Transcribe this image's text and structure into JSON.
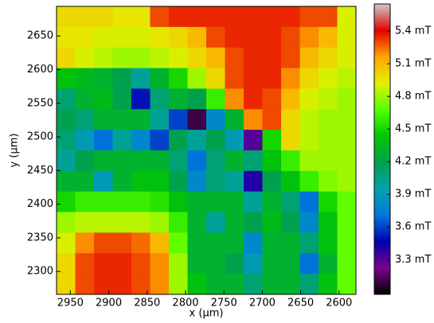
{
  "chart_data": {
    "type": "heatmap",
    "xlabel": "x (μm)",
    "ylabel": "y (μm)",
    "xlim": [
      2968,
      2578
    ],
    "ylim": [
      2266,
      2694
    ],
    "xticks": [
      2950,
      2900,
      2850,
      2800,
      2750,
      2700,
      2650,
      2600
    ],
    "yticks": [
      2300,
      2350,
      2400,
      2450,
      2500,
      2550,
      2600,
      2650
    ],
    "clim": [
      2.98,
      5.65
    ],
    "colormap": [
      "#000000",
      "#7d008d",
      "#0000b0",
      "#0077dd",
      "#00a3aa",
      "#00a050",
      "#00c800",
      "#55ff00",
      "#e5ef00",
      "#ffa500",
      "#e40000",
      "#cccccc"
    ],
    "cticks": [
      {
        "value": 3.3,
        "label": "3.3 mT"
      },
      {
        "value": 3.6,
        "label": "3.6 mT"
      },
      {
        "value": 3.9,
        "label": "3.9 mT"
      },
      {
        "value": 4.2,
        "label": "4.2 mT"
      },
      {
        "value": 4.5,
        "label": "4.5 mT"
      },
      {
        "value": 4.8,
        "label": "4.8 mT"
      },
      {
        "value": 5.1,
        "label": "5.1 mT"
      },
      {
        "value": 5.4,
        "label": "5.4 mT"
      }
    ],
    "z": [
      [
        5.0,
        5.0,
        5.0,
        4.95,
        4.95,
        5.3,
        5.35,
        5.35,
        5.35,
        5.35,
        5.35,
        5.35,
        5.35,
        5.3,
        5.3,
        4.9
      ],
      [
        4.95,
        4.95,
        4.9,
        4.9,
        4.9,
        4.95,
        5.0,
        5.1,
        5.3,
        5.35,
        5.35,
        5.35,
        5.3,
        5.2,
        5.1,
        4.9
      ],
      [
        5.0,
        4.9,
        4.85,
        4.8,
        4.8,
        4.85,
        4.9,
        5.0,
        5.1,
        5.3,
        5.35,
        5.35,
        5.3,
        5.1,
        5.0,
        4.9
      ],
      [
        4.4,
        4.35,
        4.3,
        4.2,
        4.0,
        4.3,
        4.5,
        4.8,
        5.0,
        5.3,
        5.35,
        5.35,
        5.2,
        5.0,
        4.9,
        4.85
      ],
      [
        4.1,
        4.3,
        4.35,
        4.2,
        3.5,
        4.1,
        4.3,
        4.2,
        4.6,
        5.2,
        5.35,
        5.3,
        5.1,
        4.9,
        4.85,
        4.8
      ],
      [
        4.2,
        4.1,
        4.3,
        4.3,
        4.3,
        4.0,
        3.6,
        3.1,
        3.8,
        4.3,
        5.2,
        5.3,
        5.0,
        4.85,
        4.8,
        4.8
      ],
      [
        4.1,
        3.9,
        3.7,
        4.0,
        3.8,
        3.6,
        4.2,
        4.0,
        4.2,
        3.9,
        3.3,
        4.5,
        5.0,
        4.85,
        4.8,
        4.8
      ],
      [
        4.0,
        4.2,
        4.3,
        4.3,
        4.3,
        4.3,
        4.1,
        3.7,
        4.1,
        4.3,
        4.1,
        4.4,
        4.6,
        4.8,
        4.8,
        4.8
      ],
      [
        4.3,
        4.3,
        3.9,
        4.3,
        4.4,
        4.4,
        4.2,
        3.8,
        4.1,
        4.0,
        3.4,
        4.2,
        4.4,
        4.6,
        4.75,
        4.8
      ],
      [
        4.5,
        4.6,
        4.6,
        4.6,
        4.6,
        4.55,
        4.4,
        4.3,
        4.3,
        4.3,
        4.0,
        4.3,
        4.1,
        3.7,
        4.5,
        4.7
      ],
      [
        4.8,
        4.85,
        4.85,
        4.85,
        4.85,
        4.8,
        4.6,
        4.3,
        4.0,
        4.3,
        4.2,
        4.35,
        4.2,
        3.8,
        4.4,
        4.7
      ],
      [
        4.9,
        5.2,
        5.3,
        5.3,
        5.25,
        5.1,
        4.7,
        4.3,
        4.3,
        4.3,
        3.8,
        4.3,
        4.3,
        4.1,
        4.4,
        4.7
      ],
      [
        5.0,
        5.3,
        5.35,
        5.35,
        5.3,
        5.2,
        4.8,
        4.3,
        4.3,
        4.2,
        3.9,
        4.3,
        4.3,
        3.7,
        4.3,
        4.7
      ],
      [
        5.0,
        5.3,
        5.35,
        5.35,
        5.3,
        5.2,
        4.8,
        4.4,
        4.3,
        4.3,
        4.1,
        4.3,
        4.3,
        4.1,
        4.4,
        4.7
      ]
    ]
  }
}
